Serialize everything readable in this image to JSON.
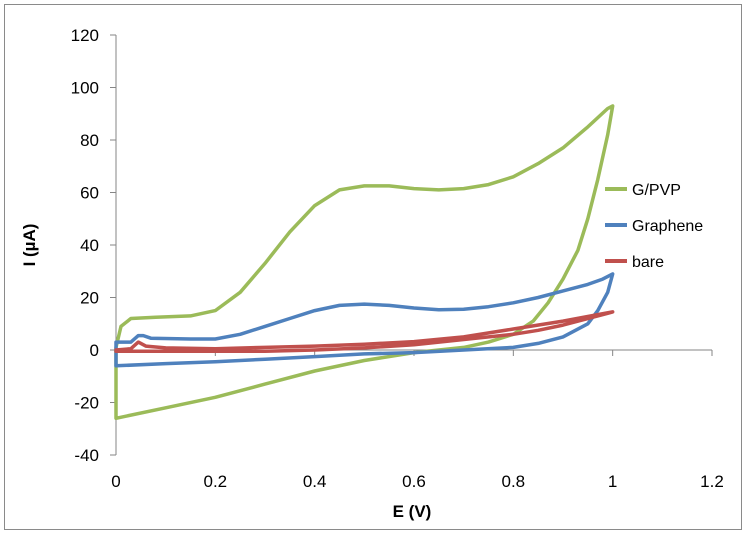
{
  "chart_data": {
    "type": "line",
    "title": "",
    "xlabel": "E (V)",
    "ylabel": "I (µA)",
    "xlim": [
      0,
      1.2
    ],
    "ylim": [
      -40,
      120
    ],
    "x_ticks": [
      0,
      0.2,
      0.4,
      0.6,
      0.8,
      1,
      1.2
    ],
    "x_tick_labels": [
      "0",
      "0.2",
      "0.4",
      "0.6",
      "0.8",
      "1",
      "1.2"
    ],
    "y_ticks": [
      -40,
      -20,
      0,
      20,
      40,
      60,
      80,
      100,
      120
    ],
    "y_tick_labels": [
      "-40",
      "-20",
      "0",
      "20",
      "40",
      "60",
      "80",
      "100",
      "120"
    ],
    "grid": false,
    "legend_position": "right",
    "series": [
      {
        "name": "G/PVP",
        "color": "#9bbb59",
        "points": [
          [
            0.0,
            1
          ],
          [
            0.01,
            9
          ],
          [
            0.03,
            12
          ],
          [
            0.08,
            12.5
          ],
          [
            0.15,
            13
          ],
          [
            0.2,
            15
          ],
          [
            0.25,
            22
          ],
          [
            0.3,
            33
          ],
          [
            0.35,
            45
          ],
          [
            0.4,
            55
          ],
          [
            0.45,
            61
          ],
          [
            0.5,
            62.5
          ],
          [
            0.55,
            62.5
          ],
          [
            0.6,
            61.5
          ],
          [
            0.65,
            61
          ],
          [
            0.7,
            61.5
          ],
          [
            0.75,
            63
          ],
          [
            0.8,
            66
          ],
          [
            0.85,
            71
          ],
          [
            0.9,
            77
          ],
          [
            0.95,
            85
          ],
          [
            0.99,
            92
          ],
          [
            1.0,
            93
          ],
          [
            0.99,
            82
          ],
          [
            0.97,
            65
          ],
          [
            0.95,
            50
          ],
          [
            0.93,
            38
          ],
          [
            0.9,
            27
          ],
          [
            0.87,
            18
          ],
          [
            0.84,
            11
          ],
          [
            0.8,
            6
          ],
          [
            0.75,
            3
          ],
          [
            0.7,
            1
          ],
          [
            0.6,
            -1
          ],
          [
            0.5,
            -4
          ],
          [
            0.4,
            -8
          ],
          [
            0.3,
            -13
          ],
          [
            0.2,
            -18
          ],
          [
            0.1,
            -22
          ],
          [
            0.0,
            -26
          ]
        ]
      },
      {
        "name": "Graphene",
        "color": "#4f81bd",
        "points": [
          [
            0.0,
            3
          ],
          [
            0.03,
            3
          ],
          [
            0.045,
            5.5
          ],
          [
            0.055,
            5.5
          ],
          [
            0.07,
            4.5
          ],
          [
            0.15,
            4.2
          ],
          [
            0.2,
            4.2
          ],
          [
            0.25,
            6
          ],
          [
            0.3,
            9
          ],
          [
            0.35,
            12
          ],
          [
            0.4,
            15
          ],
          [
            0.45,
            17
          ],
          [
            0.5,
            17.5
          ],
          [
            0.55,
            17
          ],
          [
            0.6,
            16
          ],
          [
            0.65,
            15.3
          ],
          [
            0.7,
            15.5
          ],
          [
            0.75,
            16.5
          ],
          [
            0.8,
            18
          ],
          [
            0.85,
            20
          ],
          [
            0.9,
            22.5
          ],
          [
            0.95,
            25
          ],
          [
            0.98,
            27
          ],
          [
            1.0,
            29
          ],
          [
            0.99,
            22
          ],
          [
            0.97,
            15
          ],
          [
            0.95,
            10
          ],
          [
            0.9,
            5
          ],
          [
            0.85,
            2.5
          ],
          [
            0.8,
            1
          ],
          [
            0.7,
            0
          ],
          [
            0.6,
            -1
          ],
          [
            0.5,
            -1.5
          ],
          [
            0.4,
            -2.5
          ],
          [
            0.3,
            -3.5
          ],
          [
            0.2,
            -4.5
          ],
          [
            0.1,
            -5.2
          ],
          [
            0.0,
            -6
          ]
        ]
      },
      {
        "name": "bare",
        "color": "#c0504d",
        "points": [
          [
            0.0,
            0
          ],
          [
            0.03,
            0.5
          ],
          [
            0.045,
            3
          ],
          [
            0.06,
            1.5
          ],
          [
            0.1,
            0.8
          ],
          [
            0.2,
            0.5
          ],
          [
            0.3,
            1
          ],
          [
            0.4,
            1.5
          ],
          [
            0.5,
            2.2
          ],
          [
            0.6,
            3.2
          ],
          [
            0.7,
            5
          ],
          [
            0.8,
            8
          ],
          [
            0.9,
            11
          ],
          [
            0.97,
            13.5
          ],
          [
            1.0,
            14.5
          ],
          [
            0.99,
            14
          ],
          [
            0.95,
            12
          ],
          [
            0.9,
            9.5
          ],
          [
            0.85,
            7.5
          ],
          [
            0.8,
            6
          ],
          [
            0.7,
            4
          ],
          [
            0.6,
            2
          ],
          [
            0.5,
            0.8
          ],
          [
            0.4,
            0
          ],
          [
            0.3,
            -0.5
          ],
          [
            0.2,
            -0.5
          ],
          [
            0.1,
            -0.5
          ],
          [
            0.0,
            -0.5
          ]
        ]
      }
    ]
  }
}
